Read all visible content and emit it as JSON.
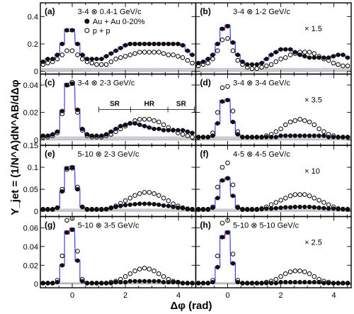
{
  "chart_data": {
    "type": "line",
    "xlabel": "Δφ (rad)",
    "ylabel": "Y_jet = (1/N^A)dN^AB/dΔφ",
    "x_ticks": [
      0,
      2,
      4
    ],
    "x_range": [
      -1.2,
      4.65
    ],
    "legend": [
      {
        "name": "Au + Au 0-20%",
        "marker": "filled-circle"
      },
      {
        "name": "p + p",
        "marker": "open-circle"
      }
    ],
    "annotations": [
      "SR",
      "HR",
      "SR"
    ],
    "x": [
      -1.1,
      -0.92,
      -0.74,
      -0.56,
      -0.38,
      -0.2,
      0.0,
      0.2,
      0.38,
      0.56,
      0.74,
      0.92,
      1.1,
      1.28,
      1.46,
      1.64,
      1.82,
      2.0,
      2.18,
      2.36,
      2.54,
      2.72,
      2.9,
      3.08,
      3.26,
      3.44,
      3.62,
      3.8,
      3.98,
      4.16,
      4.34,
      4.52
    ],
    "panels": [
      {
        "label": "(a)",
        "range": "3-4 ⊗ 0.4-1 GeV/c",
        "scale": "",
        "ylim": [
          -0.02,
          0.5
        ],
        "yticks": [
          0,
          0.2,
          0.4
        ],
        "ytick_labels": [
          "0",
          "0.2",
          "0.4"
        ],
        "band": 0.025,
        "auau": [
          0.07,
          0.09,
          0.09,
          0.12,
          0.2,
          0.3,
          0.3,
          0.2,
          0.12,
          0.09,
          0.09,
          0.09,
          0.09,
          0.11,
          0.13,
          0.15,
          0.17,
          0.19,
          0.2,
          0.2,
          0.2,
          0.2,
          0.2,
          0.2,
          0.2,
          0.2,
          0.2,
          0.2,
          0.2,
          0.19,
          0.15,
          0.12
        ],
        "pp": [
          0.05,
          0.06,
          0.07,
          0.09,
          0.12,
          0.15,
          0.15,
          0.12,
          0.09,
          0.07,
          0.06,
          0.05,
          0.05,
          0.05,
          0.07,
          0.09,
          0.1,
          0.11,
          0.12,
          0.13,
          0.14,
          0.14,
          0.14,
          0.14,
          0.14,
          0.13,
          0.12,
          0.12,
          0.11,
          0.1,
          0.08,
          0.06
        ]
      },
      {
        "label": "(b)",
        "range": "3-4 ⊗ 1-2 GeV/c",
        "scale": "× 1.5",
        "ylim": [
          -0.02,
          0.5
        ],
        "yticks": [
          0,
          0.2,
          0.4
        ],
        "ytick_labels": [
          "0",
          "0.2",
          "0.4"
        ],
        "band": 0.025,
        "auau": [
          0.06,
          0.07,
          0.09,
          0.12,
          0.2,
          0.31,
          0.33,
          0.21,
          0.12,
          0.07,
          0.05,
          0.05,
          0.05,
          0.06,
          0.09,
          0.12,
          0.14,
          0.16,
          0.16,
          0.16,
          0.14,
          0.12,
          0.11,
          0.1,
          0.1,
          0.1,
          0.1,
          0.1,
          0.11,
          0.12,
          0.12,
          0.1
        ],
        "pp": [
          0.04,
          0.05,
          0.06,
          0.09,
          0.15,
          0.23,
          0.24,
          0.15,
          0.08,
          0.05,
          0.03,
          0.02,
          0.02,
          0.03,
          0.04,
          0.05,
          0.07,
          0.09,
          0.1,
          0.12,
          0.13,
          0.14,
          0.14,
          0.14,
          0.13,
          0.11,
          0.09,
          0.08,
          0.06,
          0.05,
          0.04,
          0.04
        ]
      },
      {
        "label": "(c)",
        "range": "3-4 ⊗ 2-3 GeV/c",
        "scale": "",
        "ylim": [
          -0.004,
          0.048
        ],
        "yticks": [
          0,
          0.02,
          0.04
        ],
        "ytick_labels": [
          "0",
          "0.02",
          "0.04"
        ],
        "band": 0.0025,
        "auau": [
          0.003,
          0.003,
          0.004,
          0.006,
          0.021,
          0.04,
          0.041,
          0.022,
          0.008,
          0.004,
          0.003,
          0.003,
          0.003,
          0.004,
          0.006,
          0.008,
          0.01,
          0.011,
          0.012,
          0.012,
          0.011,
          0.01,
          0.009,
          0.008,
          0.008,
          0.007,
          0.007,
          0.007,
          0.007,
          0.007,
          0.006,
          0.005
        ],
        "pp": [
          0.002,
          0.002,
          0.003,
          0.005,
          0.019,
          0.04,
          0.042,
          0.02,
          0.007,
          0.003,
          0.002,
          0.002,
          0.002,
          0.003,
          0.004,
          0.006,
          0.008,
          0.01,
          0.012,
          0.014,
          0.015,
          0.015,
          0.015,
          0.014,
          0.013,
          0.011,
          0.009,
          0.007,
          0.005,
          0.004,
          0.003,
          0.002
        ]
      },
      {
        "label": "(d)",
        "range": "3-4 ⊗ 3-4 GeV/c",
        "scale": "× 3.5",
        "ylim": [
          -0.004,
          0.048
        ],
        "yticks": [
          0,
          0.02,
          0.04
        ],
        "ytick_labels": [
          "0",
          "0.02",
          "0.04"
        ],
        "band": 0.0025,
        "auau": [
          0.002,
          0.002,
          0.002,
          0.003,
          0.012,
          0.028,
          0.029,
          0.013,
          0.004,
          0.002,
          0.002,
          0.002,
          0.002,
          0.002,
          0.002,
          0.002,
          0.002,
          0.003,
          0.003,
          0.003,
          0.003,
          0.003,
          0.003,
          0.003,
          0.003,
          0.003,
          0.003,
          0.002,
          0.002,
          0.002,
          0.002,
          0.002
        ],
        "pp": [
          0.002,
          0.002,
          0.002,
          0.005,
          0.02,
          0.038,
          0.039,
          0.021,
          0.006,
          0.002,
          0.002,
          0.002,
          0.002,
          0.002,
          0.003,
          0.004,
          0.006,
          0.008,
          0.011,
          0.013,
          0.014,
          0.015,
          0.014,
          0.013,
          0.011,
          0.008,
          0.006,
          0.004,
          0.003,
          0.002,
          0.002,
          0.002
        ]
      },
      {
        "label": "(e)",
        "range": "5-10 ⊗ 2-3 GeV/c",
        "scale": "",
        "ylim": [
          -0.012,
          0.15
        ],
        "yticks": [
          0,
          0.05,
          0.1,
          0.15
        ],
        "ytick_labels": [
          "0",
          "0.05",
          "0.1",
          "0.15"
        ],
        "band": 0.006,
        "auau": [
          0.005,
          0.005,
          0.005,
          0.008,
          0.045,
          0.098,
          0.1,
          0.05,
          0.01,
          0.005,
          0.005,
          0.005,
          0.005,
          0.005,
          0.007,
          0.01,
          0.012,
          0.014,
          0.015,
          0.016,
          0.017,
          0.017,
          0.017,
          0.016,
          0.015,
          0.013,
          0.012,
          0.01,
          0.008,
          0.007,
          0.006,
          0.005
        ],
        "pp": [
          0.004,
          0.004,
          0.004,
          0.008,
          0.05,
          0.095,
          0.098,
          0.055,
          0.01,
          0.004,
          0.004,
          0.004,
          0.004,
          0.005,
          0.008,
          0.012,
          0.018,
          0.024,
          0.03,
          0.036,
          0.04,
          0.043,
          0.043,
          0.04,
          0.036,
          0.03,
          0.024,
          0.017,
          0.012,
          0.008,
          0.005,
          0.004
        ]
      },
      {
        "label": "(f)",
        "range": "4-5 ⊗ 4-5 GeV/c",
        "scale": "× 10",
        "ylim": [
          -0.012,
          0.15
        ],
        "yticks": [
          0,
          0.05,
          0.1,
          0.15
        ],
        "ytick_labels": [
          "0",
          "0.05",
          "0.1",
          "0.15"
        ],
        "band": 0.006,
        "auau": [
          0.005,
          0.005,
          0.005,
          0.008,
          0.03,
          0.07,
          0.075,
          0.035,
          0.008,
          0.005,
          0.005,
          0.005,
          0.005,
          0.005,
          0.006,
          0.006,
          0.007,
          0.008,
          0.009,
          0.009,
          0.01,
          0.01,
          0.01,
          0.01,
          0.009,
          0.008,
          0.007,
          0.006,
          0.006,
          0.005,
          0.005,
          0.005
        ],
        "pp": [
          0.004,
          0.004,
          0.004,
          0.01,
          0.055,
          0.1,
          0.11,
          0.06,
          0.01,
          0.004,
          0.004,
          0.004,
          0.004,
          0.006,
          0.01,
          0.015,
          0.02,
          0.025,
          0.03,
          0.035,
          0.038,
          0.038,
          0.038,
          0.035,
          0.03,
          0.025,
          0.02,
          0.015,
          0.01,
          0.006,
          0.005,
          0.004
        ]
      },
      {
        "label": "(g)",
        "range": "5-10 ⊗ 3-5 GeV/c",
        "scale": "",
        "ylim": [
          -0.004,
          0.072
        ],
        "yticks": [
          0,
          0.02,
          0.04,
          0.06
        ],
        "ytick_labels": [
          "0",
          "0.02",
          "0.04",
          "0.06"
        ],
        "band": 0.002,
        "auau": [
          0.001,
          0.001,
          0.001,
          0.002,
          0.02,
          0.055,
          0.058,
          0.025,
          0.003,
          0.001,
          0.001,
          0.001,
          0.001,
          0.001,
          0.001,
          0.002,
          0.002,
          0.002,
          0.003,
          0.003,
          0.003,
          0.003,
          0.003,
          0.003,
          0.003,
          0.002,
          0.002,
          0.002,
          0.002,
          0.001,
          0.001,
          0.001
        ],
        "pp": [
          0.001,
          0.001,
          0.001,
          0.004,
          0.03,
          0.068,
          0.07,
          0.035,
          0.005,
          0.001,
          0.001,
          0.001,
          0.001,
          0.001,
          0.002,
          0.003,
          0.005,
          0.008,
          0.011,
          0.014,
          0.016,
          0.017,
          0.016,
          0.014,
          0.011,
          0.008,
          0.005,
          0.003,
          0.002,
          0.001,
          0.001,
          0.001
        ]
      },
      {
        "label": "(h)",
        "range": "5-10 ⊗ 5-10 GeV/c",
        "scale": "× 2.5",
        "ylim": [
          -0.004,
          0.072
        ],
        "yticks": [
          0,
          0.02,
          0.04,
          0.06
        ],
        "ytick_labels": [
          "0",
          "0.02",
          "0.04",
          "0.06"
        ],
        "band": 0.002,
        "auau": [
          0.001,
          0.001,
          0.001,
          0.002,
          0.018,
          0.05,
          0.055,
          0.022,
          0.002,
          0.001,
          0.001,
          0.001,
          0.001,
          0.001,
          0.001,
          0.001,
          0.001,
          0.002,
          0.002,
          0.002,
          0.002,
          0.002,
          0.002,
          0.002,
          0.002,
          0.002,
          0.001,
          0.001,
          0.001,
          0.001,
          0.001,
          0.001
        ],
        "pp": [
          0.001,
          0.001,
          0.001,
          0.004,
          0.03,
          0.065,
          0.068,
          0.032,
          0.004,
          0.001,
          0.001,
          0.001,
          0.001,
          0.001,
          0.002,
          0.003,
          0.005,
          0.008,
          0.011,
          0.013,
          0.014,
          0.014,
          0.013,
          0.011,
          0.008,
          0.005,
          0.003,
          0.002,
          0.001,
          0.001,
          0.001,
          0.001
        ]
      }
    ],
    "colors": {
      "auau_marker": "#111111",
      "pp_marker": "#ffffff",
      "model_line": "#3b4cff",
      "model_line_alt": "#e02020",
      "band": "#c9cdd4"
    }
  }
}
